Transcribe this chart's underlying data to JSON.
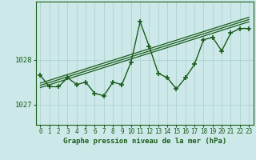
{
  "x_values": [
    0,
    1,
    2,
    3,
    4,
    5,
    6,
    7,
    8,
    9,
    10,
    11,
    12,
    13,
    14,
    15,
    16,
    17,
    18,
    19,
    20,
    21,
    22,
    23
  ],
  "y_values": [
    1027.65,
    1027.4,
    1027.4,
    1027.6,
    1027.45,
    1027.5,
    1027.25,
    1027.2,
    1027.5,
    1027.45,
    1027.95,
    1028.85,
    1028.3,
    1027.7,
    1027.6,
    1027.35,
    1027.6,
    1027.9,
    1028.45,
    1028.5,
    1028.2,
    1028.6,
    1028.7,
    1028.7
  ],
  "trend_lines": [
    [
      0,
      1027.38,
      23,
      1028.85
    ],
    [
      0,
      1027.43,
      23,
      1028.9
    ],
    [
      0,
      1027.48,
      23,
      1028.95
    ]
  ],
  "ylim": [
    1026.55,
    1029.3
  ],
  "yticks": [
    1027,
    1028
  ],
  "xticks": [
    0,
    1,
    2,
    3,
    4,
    5,
    6,
    7,
    8,
    9,
    10,
    11,
    12,
    13,
    14,
    15,
    16,
    17,
    18,
    19,
    20,
    21,
    22,
    23
  ],
  "xlabel": "Graphe pression niveau de la mer (hPa)",
  "bg_color": "#cce8e8",
  "line_color": "#1a5c1a",
  "grid_color": "#aacece",
  "spine_color": "#1a5c1a",
  "tick_label_color": "#1a5c1a",
  "xlabel_color": "#1a5c1a",
  "marker": "+",
  "linewidth": 1.0,
  "markersize": 4,
  "markeredgewidth": 1.2,
  "tick_fontsize": 5.5,
  "ylabel_fontsize": 6.5,
  "xlabel_fontsize": 6.5
}
